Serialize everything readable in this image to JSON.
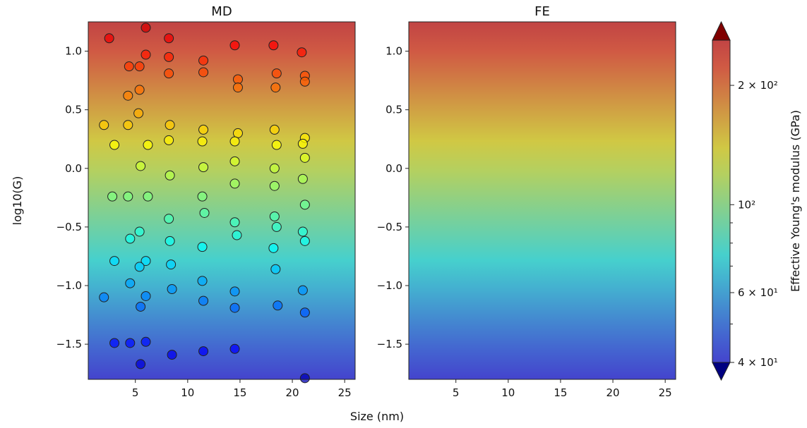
{
  "chart_data": [
    {
      "type": "scatter",
      "title": "MD",
      "xlabel": "",
      "ylabel": "log10(G)",
      "xlim": [
        0.5,
        26
      ],
      "ylim": [
        -1.8,
        1.25
      ],
      "x_ticks": [
        5,
        10,
        15,
        20,
        25
      ],
      "y_ticks": [
        1.0,
        0.5,
        0.0,
        -0.5,
        -1.0,
        -1.5
      ],
      "y_tick_labels": [
        "1.0",
        "0.5",
        "0.0",
        "−0.5",
        "−1.0",
        "−1.5"
      ],
      "background": "vertical color gradient by log10(G)",
      "points": [
        {
          "x": 2.5,
          "y": 1.11
        },
        {
          "x": 6.0,
          "y": 1.2
        },
        {
          "x": 8.2,
          "y": 1.11
        },
        {
          "x": 6.0,
          "y": 0.97
        },
        {
          "x": 8.2,
          "y": 0.95
        },
        {
          "x": 11.5,
          "y": 0.92
        },
        {
          "x": 14.5,
          "y": 1.05
        },
        {
          "x": 18.2,
          "y": 1.05
        },
        {
          "x": 20.9,
          "y": 0.99
        },
        {
          "x": 4.4,
          "y": 0.87
        },
        {
          "x": 5.4,
          "y": 0.87
        },
        {
          "x": 8.2,
          "y": 0.81
        },
        {
          "x": 11.5,
          "y": 0.82
        },
        {
          "x": 14.8,
          "y": 0.76
        },
        {
          "x": 18.5,
          "y": 0.81
        },
        {
          "x": 21.2,
          "y": 0.79
        },
        {
          "x": 14.8,
          "y": 0.69
        },
        {
          "x": 18.4,
          "y": 0.69
        },
        {
          "x": 21.2,
          "y": 0.74
        },
        {
          "x": 4.3,
          "y": 0.62
        },
        {
          "x": 5.4,
          "y": 0.67
        },
        {
          "x": 5.3,
          "y": 0.47
        },
        {
          "x": 2.0,
          "y": 0.37
        },
        {
          "x": 4.3,
          "y": 0.37
        },
        {
          "x": 8.3,
          "y": 0.37
        },
        {
          "x": 11.5,
          "y": 0.33
        },
        {
          "x": 14.8,
          "y": 0.3
        },
        {
          "x": 18.3,
          "y": 0.33
        },
        {
          "x": 21.2,
          "y": 0.26
        },
        {
          "x": 3.0,
          "y": 0.2
        },
        {
          "x": 6.2,
          "y": 0.2
        },
        {
          "x": 8.2,
          "y": 0.24
        },
        {
          "x": 11.4,
          "y": 0.23
        },
        {
          "x": 14.5,
          "y": 0.23
        },
        {
          "x": 18.5,
          "y": 0.2
        },
        {
          "x": 21.0,
          "y": 0.21
        },
        {
          "x": 21.2,
          "y": 0.09
        },
        {
          "x": 5.5,
          "y": 0.02
        },
        {
          "x": 8.3,
          "y": -0.06
        },
        {
          "x": 11.5,
          "y": 0.01
        },
        {
          "x": 14.5,
          "y": 0.06
        },
        {
          "x": 18.3,
          "y": 0.0
        },
        {
          "x": 21.0,
          "y": -0.09
        },
        {
          "x": 14.5,
          "y": -0.13
        },
        {
          "x": 18.3,
          "y": -0.15
        },
        {
          "x": 2.8,
          "y": -0.24
        },
        {
          "x": 4.3,
          "y": -0.24
        },
        {
          "x": 6.2,
          "y": -0.24
        },
        {
          "x": 11.4,
          "y": -0.24
        },
        {
          "x": 21.2,
          "y": -0.31
        },
        {
          "x": 11.6,
          "y": -0.38
        },
        {
          "x": 8.2,
          "y": -0.43
        },
        {
          "x": 14.5,
          "y": -0.46
        },
        {
          "x": 18.3,
          "y": -0.41
        },
        {
          "x": 18.5,
          "y": -0.5
        },
        {
          "x": 21.0,
          "y": -0.54
        },
        {
          "x": 14.7,
          "y": -0.57
        },
        {
          "x": 5.4,
          "y": -0.54
        },
        {
          "x": 4.5,
          "y": -0.6
        },
        {
          "x": 8.3,
          "y": -0.62
        },
        {
          "x": 11.4,
          "y": -0.67
        },
        {
          "x": 18.2,
          "y": -0.68
        },
        {
          "x": 21.2,
          "y": -0.62
        },
        {
          "x": 3.0,
          "y": -0.79
        },
        {
          "x": 6.0,
          "y": -0.79
        },
        {
          "x": 5.4,
          "y": -0.84
        },
        {
          "x": 8.4,
          "y": -0.82
        },
        {
          "x": 18.4,
          "y": -0.86
        },
        {
          "x": 4.5,
          "y": -0.98
        },
        {
          "x": 11.4,
          "y": -0.96
        },
        {
          "x": 8.5,
          "y": -1.03
        },
        {
          "x": 14.5,
          "y": -1.05
        },
        {
          "x": 21.0,
          "y": -1.04
        },
        {
          "x": 2.0,
          "y": -1.1
        },
        {
          "x": 6.0,
          "y": -1.09
        },
        {
          "x": 11.5,
          "y": -1.13
        },
        {
          "x": 5.5,
          "y": -1.18
        },
        {
          "x": 14.5,
          "y": -1.19
        },
        {
          "x": 18.6,
          "y": -1.17
        },
        {
          "x": 21.2,
          "y": -1.23
        },
        {
          "x": 3.0,
          "y": -1.49
        },
        {
          "x": 4.5,
          "y": -1.49
        },
        {
          "x": 6.0,
          "y": -1.48
        },
        {
          "x": 8.5,
          "y": -1.59
        },
        {
          "x": 11.5,
          "y": -1.56
        },
        {
          "x": 14.5,
          "y": -1.54
        },
        {
          "x": 5.5,
          "y": -1.67
        },
        {
          "x": 21.2,
          "y": -1.79
        }
      ]
    },
    {
      "type": "heatmap",
      "title": "FE",
      "xlabel": "",
      "ylabel": "",
      "xlim": [
        0.5,
        26
      ],
      "ylim": [
        -1.8,
        1.25
      ],
      "x_ticks": [
        5,
        10,
        15,
        20,
        25
      ],
      "y_ticks": [
        1.0,
        0.5,
        0.0,
        -0.5,
        -1.0,
        -1.5
      ],
      "y_tick_labels": [
        "1.0",
        "0.5",
        "0.0",
        "−0.5",
        "−1.0",
        "−1.5"
      ],
      "background": "vertical color gradient by log10(G)"
    }
  ],
  "shared_xlabel": "Size (nm)",
  "colorbar": {
    "label": "Effective Young's modulus (GPa)",
    "scale": "log",
    "range": [
      40,
      260
    ],
    "extend": "both",
    "extend_top_color": "#800000",
    "extend_bottom_color": "#000080",
    "ticks": [
      {
        "value": 200,
        "label": "2 × 10²"
      },
      {
        "value": 100,
        "label": "10²"
      },
      {
        "value": 60,
        "label": "6 × 10¹"
      },
      {
        "value": 40,
        "label": "4 × 10¹"
      }
    ],
    "minor_ticks": [
      50,
      70,
      80,
      90,
      300
    ]
  },
  "colormap": {
    "name": "jet",
    "stops": [
      "#00007f",
      "#0000ff",
      "#007fff",
      "#00ffff",
      "#7fff7f",
      "#ffff00",
      "#ff7f00",
      "#ff0000",
      "#7f0000"
    ]
  }
}
